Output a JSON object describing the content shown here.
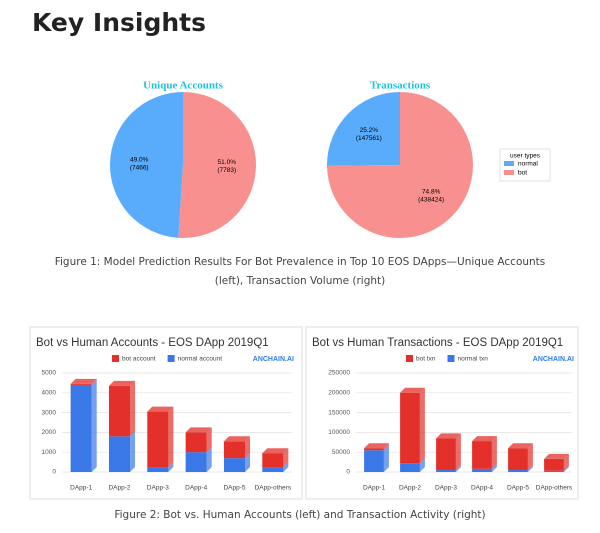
{
  "heading": "Key Insights",
  "pie_legend": {
    "title": "user types",
    "labels": [
      "normal",
      "bot"
    ]
  },
  "captions": [
    "Figure 1: Model Prediction Results For Bot Prevalence in Top 10 EOS DApps—Unique Accounts (left), Transaction Volume (right)",
    "Figure 2: Bot vs. Human Accounts (left) and Transaction Activity (right)"
  ],
  "brand": "ANCHAIN.AI",
  "chart_data": [
    {
      "type": "pie",
      "title": "Unique Accounts",
      "values": [
        49.0,
        51.0
      ],
      "value_labels": [
        "49.0%",
        "51.0%"
      ],
      "counts": [
        7466,
        7783
      ],
      "count_labels": [
        "(7466)",
        "(7783)"
      ],
      "colors": [
        "#59abfb",
        "#f99090"
      ]
    },
    {
      "type": "pie",
      "title": "Transactions",
      "values": [
        25.2,
        74.8
      ],
      "value_labels": [
        "25.2%",
        "74.8%"
      ],
      "counts": [
        147561,
        438424
      ],
      "count_labels": [
        "(147561)",
        "(438424)"
      ],
      "colors": [
        "#59abfb",
        "#f99090"
      ]
    },
    {
      "type": "bar",
      "title": "Bot vs Human Accounts - EOS DApp 2019Q1",
      "categories": [
        "DApp-1",
        "DApp-2",
        "DApp-3",
        "DApp-4",
        "DApp-5",
        "DApp-others"
      ],
      "series": [
        {
          "name": "bot account",
          "color": "#e3302a",
          "values": [
            50,
            2550,
            2800,
            1000,
            850,
            700
          ]
        },
        {
          "name": "normal account",
          "color": "#3b78e7",
          "values": [
            4400,
            1800,
            250,
            1000,
            700,
            250
          ]
        }
      ],
      "ylim": [
        0,
        5000
      ],
      "yticks": [
        0,
        1000,
        2000,
        3000,
        4000,
        5000
      ],
      "grid": true
    },
    {
      "type": "bar",
      "title": "Bot vs Human Transactions - EOS DApp 2019Q1",
      "categories": [
        "DApp-1",
        "DApp-2",
        "DApp-3",
        "DApp-4",
        "DApp-5",
        "DApp-others"
      ],
      "series": [
        {
          "name": "bot txn",
          "color": "#e3302a",
          "values": [
            5000,
            178000,
            80000,
            70000,
            55000,
            30000
          ]
        },
        {
          "name": "normal txn",
          "color": "#3b78e7",
          "values": [
            55000,
            22000,
            5000,
            8000,
            5000,
            3000
          ]
        }
      ],
      "ylim": [
        0,
        250000
      ],
      "yticks": [
        0,
        50000,
        100000,
        150000,
        200000,
        250000
      ],
      "grid": true
    }
  ]
}
